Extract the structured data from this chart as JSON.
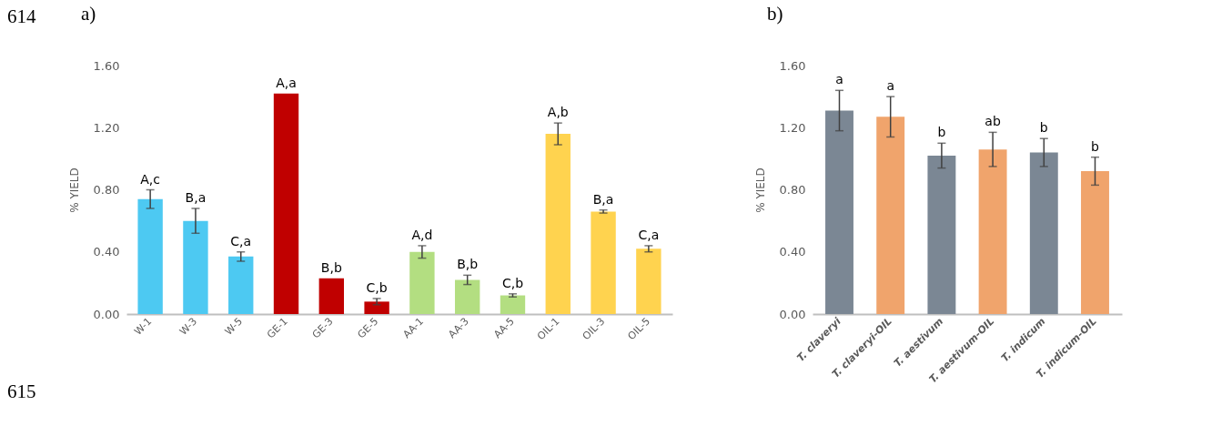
{
  "chart_data": [
    {
      "type": "bar",
      "title": "a)",
      "ylabel": "% YIELD",
      "categories": [
        "W-1",
        "W-3",
        "W-5",
        "GE-1",
        "GE-3",
        "GE-5",
        "AA-1",
        "AA-3",
        "AA-5",
        "OIL-1",
        "OIL-3",
        "OIL-5"
      ],
      "values": [
        0.74,
        0.6,
        0.37,
        1.42,
        0.23,
        0.08,
        0.4,
        0.22,
        0.12,
        1.16,
        0.66,
        0.42
      ],
      "errors": [
        0.06,
        0.08,
        0.03,
        null,
        null,
        0.02,
        0.04,
        0.03,
        0.01,
        0.07,
        0.01,
        0.02
      ],
      "colors": [
        "#4dc9f2",
        "#4dc9f2",
        "#4dc9f2",
        "#c00000",
        "#c00000",
        "#c00000",
        "#b3de81",
        "#b3de81",
        "#b3de81",
        "#ffd34f",
        "#ffd34f",
        "#ffd34f"
      ],
      "value_labels": [
        "A,c",
        "B,a",
        "C,a",
        "A,a",
        "B,b",
        "C,b",
        "A,d",
        "B,b",
        "C,b",
        "A,b",
        "B,a",
        "C,a"
      ],
      "ylim": [
        0,
        1.6
      ],
      "yticks": [
        {
          "value": 0,
          "label": "0.00"
        },
        {
          "value": 0.4,
          "label": "0.40"
        },
        {
          "value": 0.8,
          "label": "0.80"
        },
        {
          "value": 1.2,
          "label": "1.20"
        },
        {
          "value": 1.6,
          "label": "1.60"
        }
      ],
      "grid": false,
      "annotations": [
        "614",
        "615"
      ]
    },
    {
      "type": "bar",
      "title": "b)",
      "ylabel": "% YIELD",
      "categories": [
        "T. claveryi",
        "T. claveryi-OIL",
        "T. aestivum",
        "T. aestivum-OIL",
        "T. indicum",
        "T. indicum-OIL"
      ],
      "values": [
        1.31,
        1.27,
        1.02,
        1.06,
        1.04,
        0.92
      ],
      "errors": [
        0.13,
        0.13,
        0.08,
        0.11,
        0.09,
        0.09
      ],
      "colors": [
        "#7b8794",
        "#f0a46c",
        "#7b8794",
        "#f0a46c",
        "#7b8794",
        "#f0a46c"
      ],
      "value_labels": [
        "a",
        "a",
        "b",
        "ab",
        "b",
        "b"
      ],
      "ylim": [
        0,
        1.6
      ],
      "yticks": [
        {
          "value": 0,
          "label": "0.00"
        },
        {
          "value": 0.4,
          "label": "0.40"
        },
        {
          "value": 0.8,
          "label": "0.80"
        },
        {
          "value": 1.2,
          "label": "1.20"
        },
        {
          "value": 1.6,
          "label": "1.60"
        }
      ],
      "grid": false
    }
  ]
}
